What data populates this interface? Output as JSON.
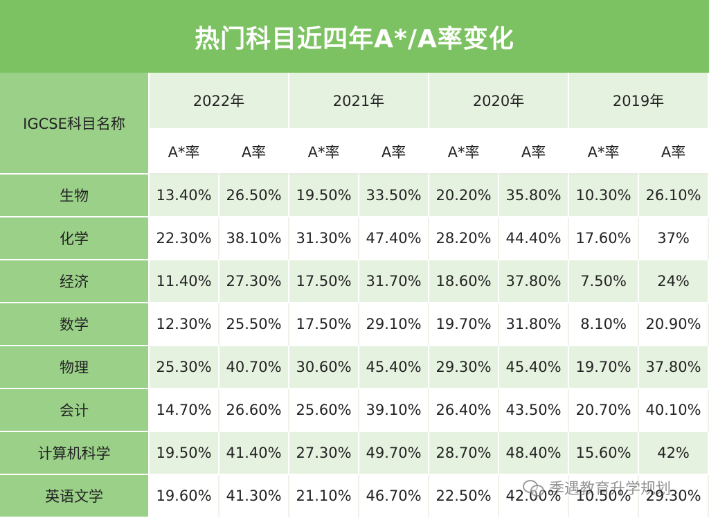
{
  "title": "热门科目近四年A*/A率变化",
  "corner_label": "IGCSE科目名称",
  "years": [
    "2022年",
    "2021年",
    "2020年",
    "2019年"
  ],
  "sub_headers": [
    "A*率",
    "A率"
  ],
  "rows": [
    {
      "subject": "生物",
      "values": [
        "13.40%",
        "26.50%",
        "19.50%",
        "33.50%",
        "20.20%",
        "35.80%",
        "10.30%",
        "26.10%"
      ]
    },
    {
      "subject": "化学",
      "values": [
        "22.30%",
        "38.10%",
        "31.30%",
        "47.40%",
        "28.20%",
        "44.40%",
        "17.60%",
        "37%"
      ]
    },
    {
      "subject": "经济",
      "values": [
        "11.40%",
        "27.30%",
        "17.50%",
        "31.70%",
        "18.60%",
        "37.80%",
        "7.50%",
        "24%"
      ]
    },
    {
      "subject": "数学",
      "values": [
        "12.30%",
        "25.50%",
        "17.50%",
        "29.10%",
        "19.70%",
        "31.80%",
        "8.10%",
        "20.90%"
      ]
    },
    {
      "subject": "物理",
      "values": [
        "25.30%",
        "40.70%",
        "30.60%",
        "45.40%",
        "29.30%",
        "45.40%",
        "19.70%",
        "37.80%"
      ]
    },
    {
      "subject": "会计",
      "values": [
        "14.70%",
        "26.60%",
        "25.60%",
        "39.10%",
        "26.40%",
        "43.50%",
        "20.70%",
        "40.10%"
      ]
    },
    {
      "subject": "计算机科学",
      "values": [
        "19.50%",
        "41.40%",
        "27.30%",
        "49.70%",
        "28.70%",
        "48.40%",
        "15.60%",
        "42%"
      ]
    },
    {
      "subject": "英语文学",
      "values": [
        "19.60%",
        "41.30%",
        "21.10%",
        "46.70%",
        "22.50%",
        "42.00%",
        "10.50%",
        "29.30%"
      ]
    }
  ],
  "watermark": "季遇教育升学规划",
  "colors": {
    "header_green": "#7dc262",
    "label_green": "#9bd089",
    "row_shade": "#e6f2e0"
  }
}
